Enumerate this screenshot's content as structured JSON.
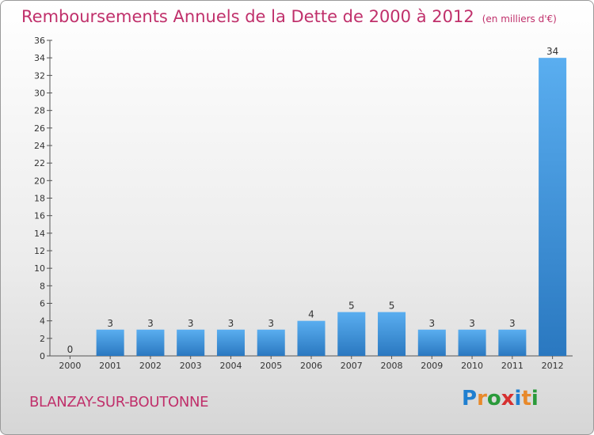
{
  "header": {
    "title": "Remboursements Annuels de la Dette de 2000 à 2012",
    "unit": "(en milliers d'€)"
  },
  "footer": {
    "commune": "BLANZAY-SUR-BOUTONNE",
    "logo_text": "Proxiti",
    "logo_colors": [
      "#1f7fd0",
      "#e8892a",
      "#2a9a3a",
      "#d63030",
      "#1f7fd0",
      "#e8892a",
      "#2a9a3a"
    ]
  },
  "colors": {
    "bar_top": "#5aaef0",
    "bar_bottom": "#2a78c0",
    "axis": "#555555"
  },
  "chart_data": {
    "type": "bar",
    "categories": [
      "2000",
      "2001",
      "2002",
      "2003",
      "2004",
      "2005",
      "2006",
      "2007",
      "2008",
      "2009",
      "2010",
      "2011",
      "2012"
    ],
    "values": [
      0,
      3,
      3,
      3,
      3,
      3,
      4,
      5,
      5,
      3,
      3,
      3,
      34
    ],
    "title": "Remboursements Annuels de la Dette de 2000 à 2012",
    "ylim": [
      0,
      36
    ],
    "yticks": [
      0,
      2,
      4,
      6,
      8,
      10,
      12,
      14,
      16,
      18,
      20,
      22,
      24,
      26,
      28,
      30,
      32,
      34,
      36
    ],
    "grid": false,
    "legend": "none"
  }
}
